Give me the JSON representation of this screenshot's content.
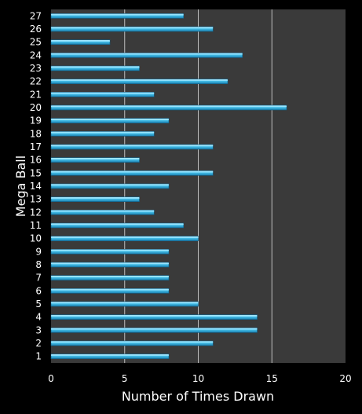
{
  "chart_data": {
    "type": "bar",
    "orientation": "horizontal",
    "xlabel": "Number of Times Drawn",
    "ylabel": "Mega Ball",
    "xlim": [
      0,
      20
    ],
    "x_ticks": [
      "0",
      "5",
      "10",
      "15",
      "20"
    ],
    "grid": "vertical",
    "categories": [
      "1",
      "2",
      "3",
      "4",
      "5",
      "6",
      "7",
      "8",
      "9",
      "10",
      "11",
      "12",
      "13",
      "14",
      "15",
      "16",
      "17",
      "18",
      "19",
      "20",
      "21",
      "22",
      "23",
      "24",
      "25",
      "26",
      "27"
    ],
    "values": [
      8,
      11,
      14,
      14,
      10,
      8,
      8,
      8,
      8,
      10,
      9,
      7,
      6,
      8,
      11,
      6,
      11,
      7,
      8,
      16,
      7,
      12,
      6,
      13,
      4,
      11,
      9
    ],
    "colors": {
      "background": "#000000",
      "plot_background": "#3a3a3a",
      "bar_fill": "#29b6e6",
      "bar_highlight": "#9fe6ff",
      "gridline": "#bdbdbd",
      "text": "#ffffff"
    }
  }
}
